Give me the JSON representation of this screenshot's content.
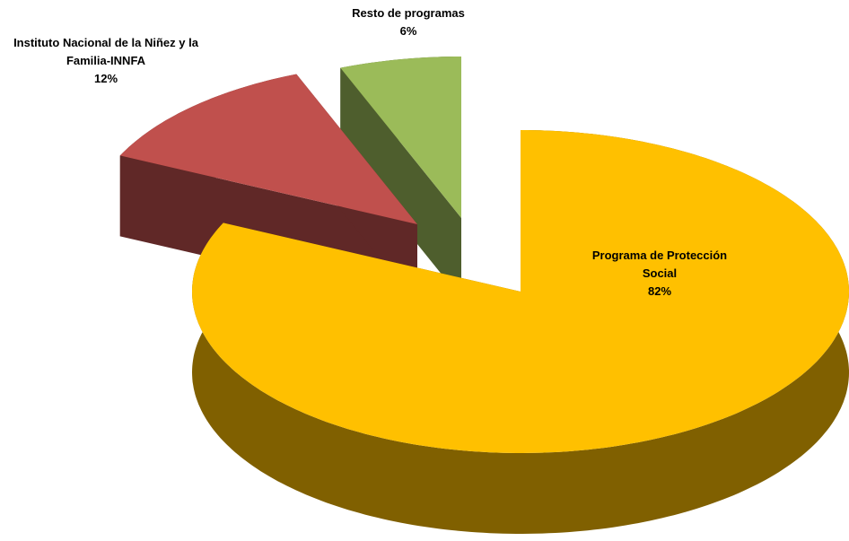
{
  "chart_data": {
    "type": "pie3d",
    "categories": [
      "Programa de Protección Social",
      "Instituto Nacional de la Niñez y la Familia-INNFA",
      "Resto de programas"
    ],
    "values": [
      82,
      12,
      6
    ],
    "value_labels": [
      "82%",
      "12%",
      "6%"
    ],
    "colors": [
      "#FFC000",
      "#C0504D",
      "#9BBB59"
    ]
  }
}
